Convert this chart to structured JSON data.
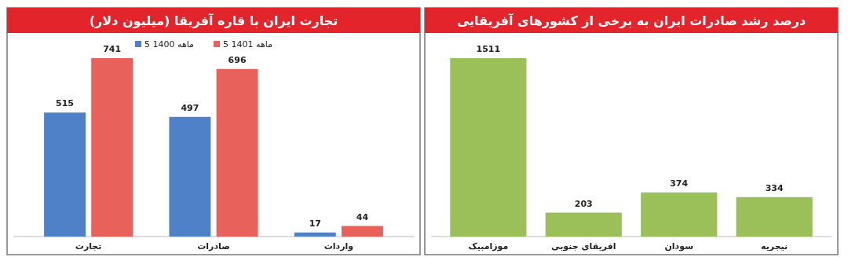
{
  "chart_data": [
    {
      "type": "bar",
      "title": "تجارت ایران با قاره آفریقا (میلیون دلار)",
      "categories": [
        "تجارت",
        "صادرات",
        "واردات"
      ],
      "series": [
        {
          "name": "5 ماهه 1400",
          "color": "#4f81c9",
          "values": [
            515,
            497,
            17
          ]
        },
        {
          "name": "5 ماهه 1401",
          "color": "#e8615a",
          "values": [
            741,
            696,
            44
          ]
        }
      ],
      "data_labels": true,
      "legend": "top"
    },
    {
      "type": "bar",
      "title": "درصد رشد صادرات ایران به برخی از کشورهای آفریقایی",
      "categories": [
        "موزامبیک",
        "افریقای جنوبی",
        "سودان",
        "نیجریه"
      ],
      "values": [
        1511,
        203,
        374,
        334
      ],
      "color": "#9bc05a",
      "data_labels": true
    }
  ]
}
